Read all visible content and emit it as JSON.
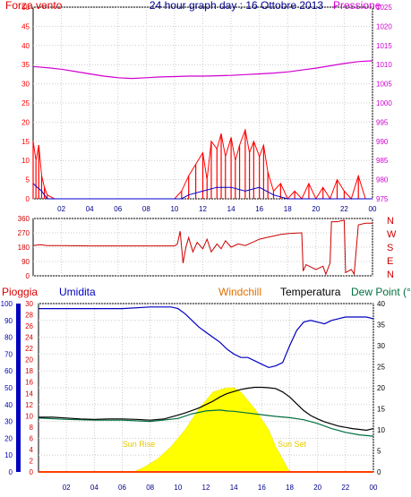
{
  "header": {
    "title": "24 hour graph day : 16 Ottobre 2013",
    "left_label": "Forza vento",
    "right_label": "Pressione"
  },
  "colors": {
    "wind": "#ff0000",
    "pressure": "#d000d0",
    "direction": "#cc0000",
    "rain_axis": "#dd0000",
    "humidity": "#0000c0",
    "windchill": "#e07000",
    "temperature": "#000000",
    "dewpoint": "#007040",
    "solar": "#ffff00",
    "axis_blue": "#00008b"
  },
  "chart_data": [
    {
      "type": "line",
      "title": "24 hour graph day : 16 Ottobre 2013",
      "x_ticks": [
        "02",
        "04",
        "06",
        "08",
        "10",
        "12",
        "14",
        "16",
        "18",
        "20",
        "22",
        "00"
      ],
      "left_axis": {
        "label": "Forza vento",
        "ticks": [
          0,
          5,
          10,
          15,
          20,
          25,
          30,
          35,
          40,
          45,
          50
        ],
        "ylim": [
          0,
          50
        ]
      },
      "right_axis": {
        "label": "Pressione",
        "ticks": [
          975,
          980,
          985,
          990,
          995,
          1000,
          1005,
          1010,
          1015,
          1020,
          1025
        ],
        "ylim": [
          975,
          1025
        ]
      },
      "grid": true,
      "series": [
        {
          "name": "Pressione",
          "axis": "right",
          "x": [
            0,
            1,
            2,
            3,
            4,
            5,
            6,
            7,
            8,
            9,
            10,
            11,
            12,
            13,
            14,
            15,
            16,
            17,
            18,
            19,
            20,
            21,
            22,
            23,
            24
          ],
          "values": [
            1009.5,
            1009.2,
            1008.8,
            1008.2,
            1007.6,
            1007.0,
            1006.6,
            1006.4,
            1006.6,
            1006.8,
            1006.9,
            1007.0,
            1007.0,
            1007.1,
            1007.2,
            1007.4,
            1007.6,
            1007.8,
            1008.1,
            1008.6,
            1009.1,
            1009.7,
            1010.3,
            1010.8,
            1011.0
          ]
        },
        {
          "name": "Forza vento (raffica)",
          "axis": "left",
          "x": [
            0,
            0.2,
            0.4,
            0.6,
            0.8,
            1.0,
            1.5,
            2.0,
            3.0,
            4.0,
            5.0,
            6.0,
            7.0,
            8.0,
            9.0,
            10.0,
            10.5,
            11.0,
            11.5,
            12.0,
            12.3,
            12.6,
            13.0,
            13.3,
            13.6,
            14.0,
            14.3,
            14.6,
            15.0,
            15.3,
            15.6,
            16.0,
            16.3,
            16.6,
            17.0,
            17.5,
            18.0,
            18.5,
            19.0,
            19.5,
            20.0,
            20.5,
            21.0,
            21.5,
            22.0,
            22.5,
            23.0,
            23.5,
            24.0
          ],
          "values": [
            15,
            10,
            14,
            6,
            3,
            1,
            0,
            0,
            0,
            0,
            0,
            0,
            0,
            0,
            0,
            0,
            2,
            6,
            9,
            12,
            5,
            15,
            13,
            17,
            11,
            16,
            10,
            14,
            18,
            12,
            15,
            11,
            14,
            7,
            2,
            4,
            0,
            2,
            0,
            4,
            0,
            3,
            0,
            5,
            2,
            0,
            6,
            0,
            0
          ]
        },
        {
          "name": "Forza vento (media)",
          "axis": "left",
          "x": [
            0,
            0.3,
            0.6,
            1.0,
            2.0,
            10.5,
            11.0,
            12.0,
            13.0,
            14.0,
            15.0,
            16.0,
            17.0,
            18.0,
            24.0
          ],
          "values": [
            4,
            3,
            2,
            0,
            0,
            0,
            1,
            2,
            3,
            3,
            2,
            3,
            1,
            0,
            0
          ]
        }
      ]
    },
    {
      "type": "line",
      "left_axis": {
        "ticks": [
          0,
          90,
          180,
          270,
          360
        ],
        "ylim": [
          0,
          360
        ]
      },
      "right_labels": [
        "N",
        "W",
        "S",
        "E",
        "N"
      ],
      "series": [
        {
          "name": "Direzione vento",
          "x": [
            0,
            0.5,
            1.0,
            2.0,
            4.0,
            6.0,
            8.0,
            10.0,
            10.2,
            10.4,
            10.6,
            10.8,
            11.0,
            11.3,
            11.6,
            12.0,
            12.3,
            12.6,
            13.0,
            13.3,
            13.6,
            14.0,
            14.5,
            15.0,
            15.5,
            16.0,
            16.5,
            17.0,
            17.5,
            18.0,
            18.5,
            19.0,
            19.1,
            19.3,
            20.0,
            20.5,
            20.7,
            21.0,
            21.1,
            21.5,
            22.0,
            22.1,
            22.5,
            22.7,
            23.0,
            23.5,
            24.0
          ],
          "values": [
            190,
            195,
            190,
            190,
            188,
            188,
            188,
            188,
            200,
            280,
            80,
            180,
            240,
            150,
            210,
            170,
            230,
            150,
            200,
            170,
            220,
            180,
            200,
            190,
            210,
            230,
            240,
            250,
            260,
            265,
            268,
            270,
            30,
            70,
            40,
            60,
            10,
            80,
            340,
            340,
            350,
            20,
            40,
            10,
            320,
            330,
            330
          ]
        }
      ]
    },
    {
      "type": "line",
      "x_ticks": [
        "02",
        "04",
        "06",
        "08",
        "10",
        "12",
        "14",
        "16",
        "18",
        "20",
        "22",
        "00"
      ],
      "legend": [
        "Pioggia",
        "Umidita",
        "Windchill",
        "Temperatura",
        "Dew Point (°C"
      ],
      "humidity_axis": {
        "ticks": [
          0,
          10,
          20,
          30,
          40,
          50,
          60,
          70,
          80,
          90,
          100
        ],
        "ylim": [
          0,
          100
        ]
      },
      "rain_axis": {
        "ticks": [
          0,
          2,
          4,
          6,
          8,
          10,
          12,
          14,
          16,
          18,
          20,
          22,
          24,
          26,
          28,
          30
        ],
        "ylim": [
          0,
          30
        ]
      },
      "temp_axis": {
        "ticks": [
          0,
          5,
          10,
          15,
          20,
          25,
          30,
          35,
          40
        ],
        "ylim": [
          0,
          40
        ]
      },
      "annotations": [
        "Sun Rise",
        "Sun Set"
      ],
      "series": [
        {
          "name": "Umidita",
          "x": [
            0,
            2,
            4,
            6,
            8,
            9.5,
            10,
            10.5,
            11,
            11.5,
            12,
            12.5,
            13,
            13.5,
            14,
            14.5,
            15,
            15.5,
            16,
            16.5,
            17,
            17.5,
            18,
            18.5,
            19,
            19.5,
            20,
            20.5,
            21,
            21.5,
            22,
            22.5,
            23,
            23.5,
            24
          ],
          "values": [
            97,
            97,
            97,
            97,
            98,
            98,
            97,
            94,
            90,
            86,
            83,
            80,
            77,
            73,
            70,
            68,
            68,
            66,
            64,
            62,
            63,
            65,
            75,
            84,
            89,
            90,
            89,
            88,
            90,
            91,
            92,
            92,
            92,
            92,
            91
          ]
        },
        {
          "name": "Temperatura",
          "x": [
            0,
            1,
            2,
            3,
            4,
            5,
            6,
            7,
            8,
            9,
            10,
            10.5,
            11,
            11.5,
            12,
            12.5,
            13,
            13.5,
            14,
            14.5,
            15,
            15.5,
            16,
            16.5,
            17,
            17.5,
            18,
            18.5,
            19,
            19.5,
            20,
            20.5,
            21,
            21.5,
            22,
            22.5,
            23,
            23.5,
            24
          ],
          "values": [
            13,
            13,
            12.8,
            12.6,
            12.5,
            12.6,
            12.6,
            12.5,
            12.3,
            12.6,
            13.5,
            14.0,
            14.6,
            15.2,
            16.0,
            16.8,
            17.8,
            18.6,
            19.1,
            19.6,
            19.9,
            20.1,
            20.1,
            20.0,
            19.8,
            19.0,
            17.8,
            16.2,
            14.6,
            13.4,
            12.6,
            11.9,
            11.4,
            10.9,
            10.6,
            10.3,
            10.1,
            9.9,
            10.3
          ]
        },
        {
          "name": "Dew Point",
          "x": [
            0,
            2,
            4,
            6,
            8,
            10,
            11,
            12,
            13,
            13.5,
            14,
            15,
            16,
            17,
            18,
            19,
            20,
            21,
            22,
            23,
            24
          ],
          "values": [
            12.8,
            12.5,
            12.3,
            12.3,
            12.0,
            12.7,
            13.8,
            14.5,
            14.7,
            14.5,
            14.4,
            14.0,
            13.6,
            13.2,
            12.9,
            12.4,
            11.5,
            10.3,
            9.4,
            8.8,
            8.5
          ]
        },
        {
          "name": "Solar",
          "x": [
            6.8,
            7.5,
            8.5,
            9.5,
            10.5,
            11.5,
            12.5,
            13.5,
            14.0,
            14.5,
            15.5,
            16.5,
            17.0,
            17.5,
            18.0
          ],
          "values": [
            0,
            1,
            3,
            6,
            10,
            15,
            19,
            20,
            20,
            19,
            15,
            10,
            6,
            3,
            0
          ]
        },
        {
          "name": "Pioggia",
          "x": [
            0,
            24
          ],
          "values": [
            0,
            0
          ]
        }
      ]
    }
  ]
}
